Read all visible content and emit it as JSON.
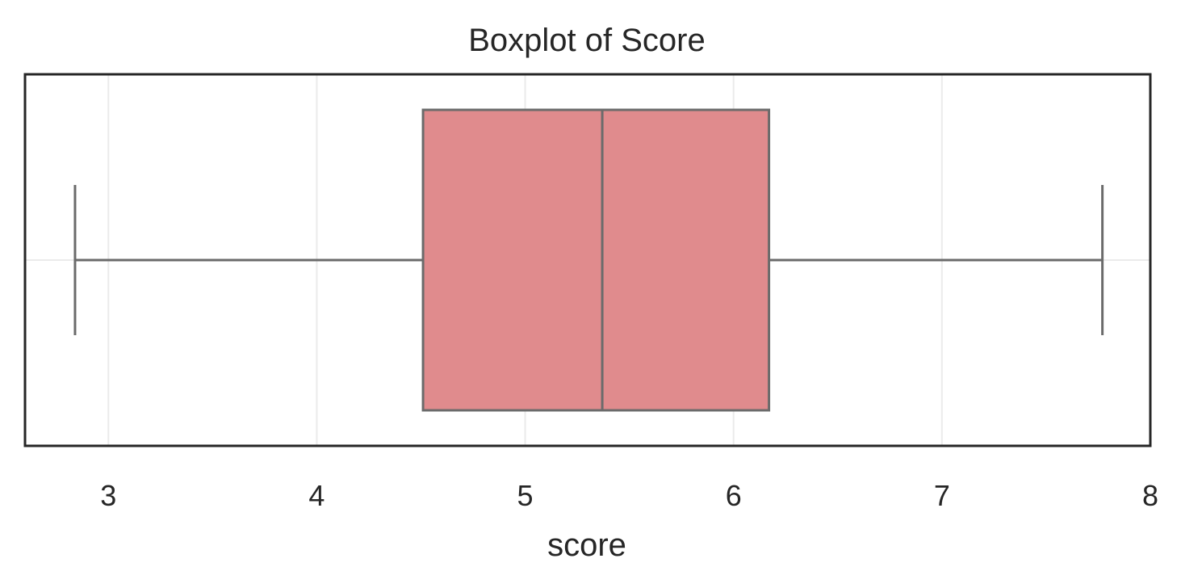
{
  "chart_data": {
    "type": "boxplot",
    "title": "Boxplot of Score",
    "xlabel": "score",
    "ylabel": "",
    "orientation": "horizontal",
    "xlim": [
      2.6,
      8.0
    ],
    "xticks": [
      3,
      4,
      5,
      6,
      7,
      8
    ],
    "grid": true,
    "legend": "none",
    "series": [
      {
        "whisker_low": 2.84,
        "q1": 4.51,
        "median": 5.37,
        "q3": 6.17,
        "whisker_high": 7.77
      }
    ]
  },
  "colors": {
    "box_fill": "#e08b8d",
    "box_edge": "#6b6b6b",
    "grid": "#ebebeb",
    "frame": "#262626",
    "text": "#262626"
  }
}
